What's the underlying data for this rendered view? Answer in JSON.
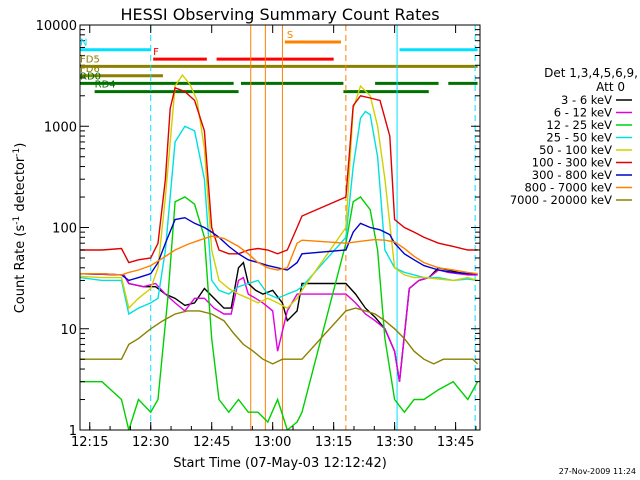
{
  "chart_data": {
    "type": "line",
    "title": "HESSI Observing Summary Count Rates",
    "xlabel": "Start Time (07-May-03 12:12:42)",
    "ylabel_main": "Count Rate (s",
    "ylabel_sup1": "-1",
    "ylabel_mid": " detector",
    "ylabel_sup2": "-1",
    "ylabel_end": ")",
    "yscale": "log",
    "ylim": [
      1,
      10000
    ],
    "xlim": [
      12.21,
      13.85
    ],
    "x_ticks": [
      {
        "t": 12.25,
        "label": "12:15"
      },
      {
        "t": 12.5,
        "label": "12:30"
      },
      {
        "t": 12.75,
        "label": "12:45"
      },
      {
        "t": 13.0,
        "label": "13:00"
      },
      {
        "t": 13.25,
        "label": "13:15"
      },
      {
        "t": 13.5,
        "label": "13:30"
      },
      {
        "t": 13.75,
        "label": "13:45"
      }
    ],
    "y_ticks": [
      {
        "v": 1,
        "label": "1"
      },
      {
        "v": 10,
        "label": "10"
      },
      {
        "v": 100,
        "label": "100"
      },
      {
        "v": 1000,
        "label": "1000"
      },
      {
        "v": 10000,
        "label": "10000"
      }
    ],
    "legend_title1": "Det 1,3,4,5,6,9,",
    "legend_title2": "Att 0",
    "series": [
      {
        "name": "3 - 6 keV",
        "color": "#000000",
        "x": [
          12.21,
          12.39,
          12.41,
          12.47,
          12.52,
          12.56,
          12.6,
          12.64,
          12.68,
          12.72,
          12.76,
          12.8,
          12.83,
          12.86,
          12.88,
          12.9,
          12.93,
          12.96,
          13.0,
          13.04,
          13.06,
          13.1,
          13.12,
          13.3,
          13.34,
          13.38,
          13.42,
          13.46,
          13.5,
          13.52,
          13.56,
          13.6,
          13.64,
          13.68,
          13.72,
          13.76,
          13.8,
          13.84
        ],
        "y": [
          35,
          34,
          28,
          26,
          26,
          22,
          20,
          17,
          18,
          25,
          20,
          16,
          16,
          40,
          45,
          28,
          24,
          22,
          24,
          18,
          12,
          15,
          28,
          28,
          22,
          16,
          13,
          10,
          6,
          3,
          25,
          30,
          32,
          40,
          38,
          36,
          35,
          34
        ]
      },
      {
        "name": "6 - 12 keV",
        "color": "#e000e0",
        "x": [
          12.21,
          12.39,
          12.41,
          12.47,
          12.52,
          12.56,
          12.6,
          12.64,
          12.68,
          12.72,
          12.76,
          12.8,
          12.83,
          12.86,
          12.88,
          12.9,
          12.93,
          12.96,
          13.0,
          13.02,
          13.06,
          13.1,
          13.3,
          13.34,
          13.38,
          13.42,
          13.46,
          13.5,
          13.52,
          13.56,
          13.6,
          13.64,
          13.68,
          13.72,
          13.76,
          13.8,
          13.84
        ],
        "y": [
          35,
          34,
          28,
          26,
          28,
          22,
          18,
          15,
          20,
          20,
          16,
          14,
          14,
          30,
          32,
          22,
          20,
          18,
          15,
          6,
          15,
          22,
          22,
          18,
          14,
          12,
          10,
          6,
          3,
          25,
          30,
          32,
          38,
          36,
          35,
          34,
          34
        ]
      },
      {
        "name": "12 - 25 keV",
        "color": "#00d000",
        "x": [
          12.21,
          12.3,
          12.38,
          12.41,
          12.45,
          12.5,
          12.53,
          12.57,
          12.6,
          12.64,
          12.68,
          12.72,
          12.75,
          12.78,
          12.82,
          12.86,
          12.9,
          12.94,
          12.98,
          13.02,
          13.06,
          13.1,
          13.12,
          13.3,
          13.33,
          13.36,
          13.4,
          13.43,
          13.46,
          13.5,
          13.54,
          13.58,
          13.62,
          13.68,
          13.74,
          13.8,
          13.84
        ],
        "y": [
          3,
          3,
          2,
          1,
          2,
          1.5,
          2,
          20,
          180,
          200,
          170,
          80,
          8,
          2,
          1.5,
          2,
          1.5,
          1.5,
          1.2,
          2,
          1,
          1.2,
          1.5,
          70,
          180,
          200,
          150,
          60,
          8,
          2,
          1.5,
          2,
          2,
          2.5,
          3,
          2,
          3
        ]
      },
      {
        "name": "25 - 50 keV",
        "color": "#00e0e0",
        "x": [
          12.21,
          12.3,
          12.38,
          12.41,
          12.45,
          12.5,
          12.53,
          12.56,
          12.6,
          12.64,
          12.68,
          12.72,
          12.75,
          12.78,
          12.82,
          12.86,
          12.9,
          12.94,
          12.98,
          13.02,
          13.06,
          13.1,
          13.12,
          13.3,
          13.33,
          13.36,
          13.38,
          13.4,
          13.43,
          13.46,
          13.5,
          13.54,
          13.58,
          13.62,
          13.68,
          13.74,
          13.8,
          13.84
        ],
        "y": [
          32,
          30,
          30,
          14,
          16,
          18,
          20,
          60,
          700,
          1000,
          900,
          300,
          30,
          24,
          22,
          26,
          28,
          30,
          22,
          20,
          22,
          24,
          26,
          80,
          400,
          1200,
          1400,
          1300,
          500,
          60,
          40,
          36,
          34,
          32,
          32,
          30,
          31,
          30
        ]
      },
      {
        "name": "50 - 100 keV",
        "color": "#d0d000",
        "x": [
          12.21,
          12.3,
          12.38,
          12.41,
          12.45,
          12.5,
          12.53,
          12.56,
          12.6,
          12.63,
          12.66,
          12.69,
          12.72,
          12.75,
          12.78,
          12.82,
          12.86,
          12.9,
          12.94,
          12.98,
          13.02,
          13.06,
          13.1,
          13.12,
          13.3,
          13.33,
          13.36,
          13.4,
          13.43,
          13.46,
          13.5,
          13.54,
          13.58,
          13.62,
          13.68,
          13.74,
          13.8,
          13.84
        ],
        "y": [
          33,
          32,
          32,
          16,
          20,
          25,
          40,
          200,
          2500,
          3200,
          2600,
          1800,
          600,
          60,
          30,
          25,
          22,
          20,
          18,
          20,
          18,
          16,
          20,
          24,
          100,
          1500,
          2500,
          2000,
          1000,
          300,
          40,
          34,
          32,
          32,
          31,
          30,
          32,
          30
        ]
      },
      {
        "name": "100 - 300 keV",
        "color": "#e00000",
        "x": [
          12.21,
          12.3,
          12.38,
          12.41,
          12.45,
          12.5,
          12.53,
          12.56,
          12.58,
          12.6,
          12.64,
          12.68,
          12.72,
          12.75,
          12.78,
          12.82,
          12.86,
          12.9,
          12.94,
          12.98,
          13.02,
          13.06,
          13.1,
          13.12,
          13.3,
          13.33,
          13.36,
          13.4,
          13.44,
          13.48,
          13.5,
          13.54,
          13.58,
          13.62,
          13.68,
          13.74,
          13.8,
          13.84
        ],
        "y": [
          60,
          60,
          62,
          45,
          48,
          50,
          70,
          300,
          1500,
          2400,
          2200,
          1800,
          900,
          100,
          60,
          55,
          55,
          60,
          62,
          60,
          55,
          60,
          100,
          130,
          200,
          1600,
          2000,
          1900,
          1800,
          800,
          120,
          100,
          90,
          80,
          70,
          65,
          60,
          60
        ]
      },
      {
        "name": "300 - 800 keV",
        "color": "#0000d0",
        "x": [
          12.21,
          12.3,
          12.38,
          12.41,
          12.45,
          12.5,
          12.53,
          12.56,
          12.6,
          12.64,
          12.68,
          12.72,
          12.75,
          12.78,
          12.82,
          12.86,
          12.9,
          12.94,
          12.98,
          13.02,
          13.06,
          13.1,
          13.12,
          13.3,
          13.33,
          13.36,
          13.4,
          13.44,
          13.48,
          13.5,
          13.54,
          13.58,
          13.62,
          13.68,
          13.74,
          13.8,
          13.84
        ],
        "y": [
          35,
          35,
          34,
          30,
          32,
          35,
          45,
          70,
          120,
          125,
          110,
          100,
          90,
          80,
          65,
          55,
          48,
          45,
          42,
          40,
          38,
          45,
          55,
          60,
          90,
          110,
          100,
          95,
          85,
          70,
          55,
          48,
          42,
          38,
          36,
          35,
          35
        ]
      },
      {
        "name": "800 - 7000 keV",
        "color": "#ff8000",
        "x": [
          12.21,
          12.3,
          12.38,
          12.41,
          12.45,
          12.5,
          12.55,
          12.6,
          12.65,
          12.7,
          12.75,
          12.8,
          12.86,
          12.9,
          12.94,
          12.98,
          13.02,
          13.06,
          13.1,
          13.12,
          13.3,
          13.34,
          13.38,
          13.42,
          13.46,
          13.5,
          13.54,
          13.58,
          13.62,
          13.68,
          13.74,
          13.8,
          13.84
        ],
        "y": [
          35,
          35,
          34,
          36,
          38,
          42,
          50,
          60,
          68,
          75,
          82,
          78,
          65,
          55,
          45,
          40,
          38,
          40,
          70,
          75,
          70,
          72,
          74,
          76,
          75,
          72,
          62,
          52,
          45,
          40,
          38,
          36,
          35
        ]
      },
      {
        "name": "7000 - 20000 keV",
        "color": "#8b8000",
        "x": [
          12.21,
          12.3,
          12.38,
          12.41,
          12.45,
          12.5,
          12.55,
          12.6,
          12.65,
          12.7,
          12.75,
          12.8,
          12.84,
          12.88,
          12.92,
          12.96,
          13.0,
          13.04,
          13.08,
          13.12,
          13.3,
          13.34,
          13.38,
          13.42,
          13.46,
          13.5,
          13.54,
          13.58,
          13.62,
          13.66,
          13.7,
          13.74,
          13.78,
          13.82,
          13.84
        ],
        "y": [
          5,
          5,
          5,
          7,
          8,
          10,
          12,
          14,
          15,
          15,
          14,
          12,
          9,
          7,
          6,
          5,
          4.5,
          5,
          5,
          5,
          15,
          16,
          15,
          14,
          12,
          10,
          8,
          6,
          5,
          4.5,
          5,
          5,
          5,
          5,
          4.5
        ]
      }
    ],
    "flags": [
      {
        "label": "N",
        "color": "#00e0ff",
        "y": 5700,
        "segments": [
          [
            12.21,
            12.5
          ],
          [
            13.52,
            13.84
          ]
        ]
      },
      {
        "label": "S",
        "color": "#ff8000",
        "y": 6800,
        "segments": [
          [
            13.05,
            13.28
          ]
        ]
      },
      {
        "label": "F",
        "color": "#ff0000",
        "y": 4600,
        "segments": [
          [
            12.51,
            12.73
          ],
          [
            12.77,
            13.25
          ]
        ]
      },
      {
        "label": "FD5",
        "color": "#8b8000",
        "y": 3900,
        "segments": [
          [
            12.21,
            13.84
          ]
        ]
      },
      {
        "label": "FD6",
        "color": "#8b8000",
        "y": 3150,
        "segments": [
          [
            12.21,
            12.55
          ]
        ]
      },
      {
        "label": "RD0",
        "color": "#007000",
        "y": 2650,
        "segments": [
          [
            12.21,
            12.84
          ],
          [
            12.87,
            13.29
          ],
          [
            13.42,
            13.68
          ],
          [
            13.72,
            13.84
          ]
        ]
      },
      {
        "label": "RD4",
        "color": "#007000",
        "y": 2200,
        "segments": [
          [
            12.27,
            12.86
          ],
          [
            13.29,
            13.64
          ]
        ]
      }
    ],
    "vlines": [
      {
        "t": 12.5,
        "color": "#00e0ff",
        "style": "dashed"
      },
      {
        "t": 12.91,
        "color": "#ff8000",
        "style": "solid"
      },
      {
        "t": 12.97,
        "color": "#ff8000",
        "style": "solid"
      },
      {
        "t": 13.04,
        "color": "#ff8000",
        "style": "solid"
      },
      {
        "t": 13.3,
        "color": "#ff8000",
        "style": "dashed"
      },
      {
        "t": 13.51,
        "color": "#00e0ff",
        "style": "solid"
      },
      {
        "t": 13.83,
        "color": "#00e0ff",
        "style": "dashed"
      }
    ],
    "timestamp": "27-Nov-2009 11:24"
  }
}
